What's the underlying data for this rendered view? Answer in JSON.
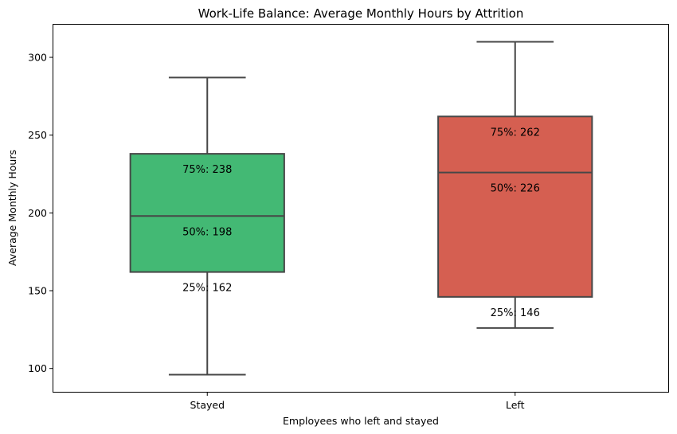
{
  "chart_data": {
    "type": "box",
    "title": "Work-Life Balance: Average Monthly Hours by Attrition",
    "xlabel": "Employees who left and stayed",
    "ylabel": "Average Monthly Hours",
    "categories": [
      "Stayed",
      "Left"
    ],
    "ylim": [
      85,
      321
    ],
    "yticks": [
      100,
      150,
      200,
      250,
      300
    ],
    "grid": false,
    "boxes": [
      {
        "category": "Stayed",
        "color": "#43b974",
        "whisker_low": 96,
        "q1": 162,
        "median": 198,
        "q3": 238,
        "whisker_high": 287,
        "labels": {
          "q3": "75%: 238",
          "median": "50%: 198",
          "q1": "25%: 162"
        }
      },
      {
        "category": "Left",
        "color": "#d55f51",
        "whisker_low": 126,
        "q1": 146,
        "median": 226,
        "q3": 262,
        "whisker_high": 310,
        "labels": {
          "q3": "75%: 262",
          "median": "50%: 226",
          "q1": "25%: 146"
        }
      }
    ],
    "line_color": "#474747"
  }
}
